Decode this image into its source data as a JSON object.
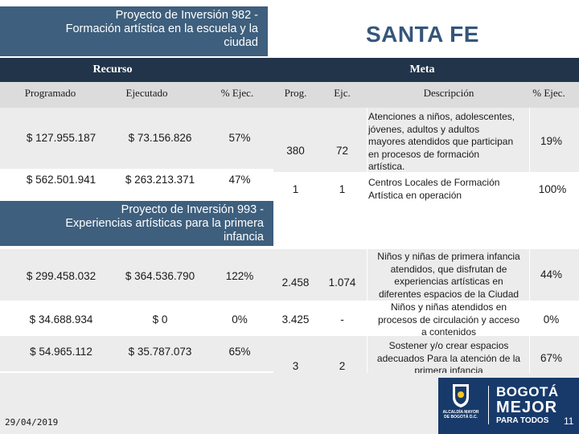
{
  "project1": {
    "title_line1": "Proyecto de Inversión  982 -",
    "title_line2": "Formación artística en la escuela y la",
    "title_line3": "ciudad"
  },
  "city": "SANTA FE",
  "headers": {
    "recurso": "Recurso",
    "meta": "Meta",
    "programado": "Programado",
    "ejecutado": "Ejecutado",
    "pct_ejec": "% Ejec.",
    "prog": "Prog.",
    "ejc": "Ejc.",
    "descripcion": "Descripción",
    "meta_pct_ejec": "% Ejec."
  },
  "rows1": [
    {
      "programado": "$ 127.955.187",
      "ejecutado": "$ 73.156.826",
      "pct": "57%",
      "prog": "380",
      "ejc": "72",
      "descripcion": [
        "Atenciones a niños, adolescentes,",
        "jóvenes, adultos y adultos",
        "mayores atendidos que participan",
        "en procesos de formación",
        "artística."
      ],
      "meta_pct": "19%"
    },
    {
      "programado": "$ 562.501.941",
      "ejecutado": "$ 263.213.371",
      "pct": "47%",
      "prog": "1",
      "ejc": "1",
      "descripcion": [
        "Centros Locales de Formación",
        "Artística en operación"
      ],
      "meta_pct": "100%"
    }
  ],
  "project2": {
    "title_line1": "Proyecto de Inversión  993 -",
    "title_line2": "Experiencias artísticas para la primera",
    "title_line3": "infancia"
  },
  "rows2": [
    {
      "programado": "$ 299.458.032",
      "ejecutado": "$ 364.536.790",
      "pct": "122%",
      "prog": "2.458",
      "ejc": "1.074",
      "descripcion": [
        "Niños y niñas de primera infancia",
        "atendidos, que disfrutan de",
        "experiencias artísticas en",
        "diferentes espacios de la Ciudad"
      ],
      "meta_pct": "44%"
    },
    {
      "programado": "$ 34.688.934",
      "ejecutado": "$ 0",
      "pct": "0%",
      "prog": "3.425",
      "ejc": "-",
      "descripcion": [
        "Niños y niñas atendidos en",
        "procesos de circulación y acceso",
        "a contenidos"
      ],
      "meta_pct": "0%"
    },
    {
      "programado": "$ 54.965.112",
      "ejecutado": "$ 35.787.073",
      "pct": "65%",
      "prog": "3",
      "ejc": "2",
      "descripcion": [
        "Sostener y/o crear espacios",
        "adecuados Para la atención de la",
        "primera infancia"
      ],
      "meta_pct": "67%"
    }
  ],
  "footer": {
    "date": "29/04/2019",
    "alcaldia_line1": "ALCALDÍA MAYOR",
    "alcaldia_line2": "DE BOGOTÁ D.C.",
    "bogota": "BOGOTÁ",
    "mejor": "MEJOR",
    "para_todos": "PARA TODOS",
    "page_number": "11"
  },
  "colors": {
    "project_box": "#3e5f7d",
    "header_bar": "#22344a",
    "city_text": "#35567a",
    "logo_panel": "#173a6b"
  }
}
